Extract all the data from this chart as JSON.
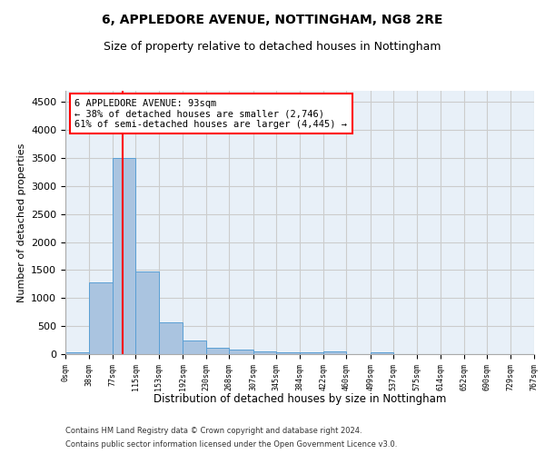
{
  "title1": "6, APPLEDORE AVENUE, NOTTINGHAM, NG8 2RE",
  "title2": "Size of property relative to detached houses in Nottingham",
  "xlabel": "Distribution of detached houses by size in Nottingham",
  "ylabel": "Number of detached properties",
  "footnote1": "Contains HM Land Registry data © Crown copyright and database right 2024.",
  "footnote2": "Contains public sector information licensed under the Open Government Licence v3.0.",
  "bin_edges": [
    0,
    38,
    77,
    115,
    153,
    192,
    230,
    268,
    307,
    345,
    384,
    422,
    460,
    499,
    537,
    575,
    614,
    652,
    690,
    729,
    767
  ],
  "bar_heights": [
    40,
    1280,
    3500,
    1480,
    570,
    240,
    120,
    85,
    55,
    40,
    30,
    55,
    0,
    40,
    0,
    0,
    0,
    0,
    0,
    0
  ],
  "bar_color": "#aac4e0",
  "bar_edge_color": "#5a9fd4",
  "grid_color": "#cccccc",
  "background_color": "#e8f0f8",
  "red_line_x": 93,
  "annotation_line1": "6 APPLEDORE AVENUE: 93sqm",
  "annotation_line2": "← 38% of detached houses are smaller (2,746)",
  "annotation_line3": "61% of semi-detached houses are larger (4,445) →",
  "ylim": [
    0,
    4700
  ],
  "yticks": [
    0,
    500,
    1000,
    1500,
    2000,
    2500,
    3000,
    3500,
    4000,
    4500
  ]
}
